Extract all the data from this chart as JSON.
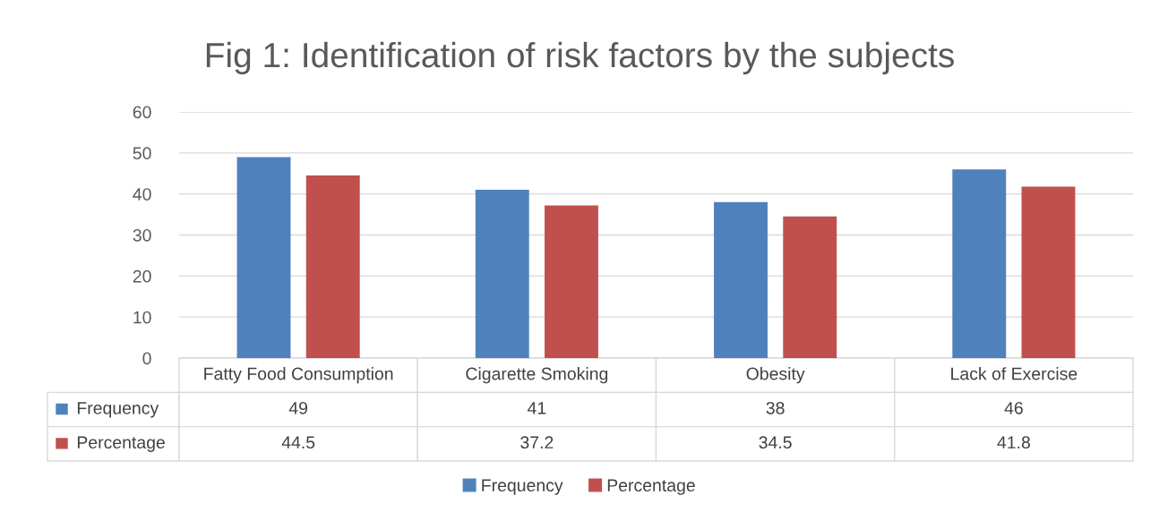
{
  "chart_data": {
    "type": "bar",
    "title": "Fig 1: Identification of risk factors by the subjects",
    "categories": [
      "Fatty Food Consumption",
      "Cigarette Smoking",
      "Obesity",
      "Lack of Exercise"
    ],
    "series": [
      {
        "name": "Frequency",
        "color": "#4f81bd",
        "values": [
          49,
          41,
          38,
          46
        ]
      },
      {
        "name": "Percentage",
        "color": "#c0504d",
        "values": [
          44.5,
          37.2,
          34.5,
          41.8
        ]
      }
    ],
    "ylim": [
      0,
      60
    ],
    "yticks": [
      0,
      10,
      20,
      30,
      40,
      50,
      60
    ],
    "grid": "y",
    "legend": "bottom",
    "data_labels": true
  }
}
